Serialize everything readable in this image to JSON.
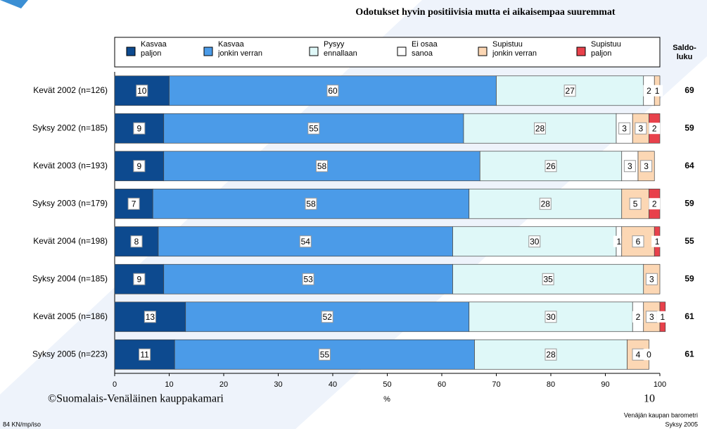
{
  "chart_data": {
    "type": "stacked-barh",
    "title": "Odotukset hyvin positiivisia mutta ei aikaisempaa suuremmat",
    "categories": [
      "Kevät 2002 (n=126)",
      "Syksy 2002 (n=185)",
      "Kevät 2003 (n=193)",
      "Syksy 2003 (n=179)",
      "Kevät 2004 (n=198)",
      "Syksy 2004 (n=185)",
      "Kevät 2005 (n=186)",
      "Syksy 2005 (n=223)"
    ],
    "series": [
      {
        "name": "Kasvaa\npaljon",
        "color": "#0d4a8f",
        "values": [
          10,
          9,
          9,
          7,
          8,
          9,
          13,
          11
        ]
      },
      {
        "name": "Kasvaa\njonkin verran",
        "color": "#4b9be8",
        "values": [
          60,
          55,
          58,
          58,
          54,
          53,
          52,
          55
        ]
      },
      {
        "name": "Pysyy\nennallaan",
        "color": "#dff8f8",
        "values": [
          27,
          28,
          26,
          28,
          30,
          35,
          30,
          28
        ]
      },
      {
        "name": "Ei osaa\nsanoa",
        "color": "#ffffff",
        "values": [
          2,
          3,
          3,
          null,
          1,
          null,
          2,
          null
        ]
      },
      {
        "name": "Supistuu\njonkin verran",
        "color": "#fcd7b4",
        "values": [
          1,
          3,
          3,
          5,
          6,
          3,
          3,
          4
        ]
      },
      {
        "name": "Supistuu\npaljon",
        "color": "#e8414b",
        "values": [
          null,
          2,
          null,
          2,
          1,
          null,
          1,
          0
        ]
      }
    ],
    "saldo_header": [
      "Saldo-",
      "luku"
    ],
    "saldo": [
      69,
      59,
      64,
      59,
      55,
      59,
      61,
      61
    ],
    "xlabel": "%",
    "xlim": [
      0,
      100
    ],
    "xticks": [
      0,
      10,
      20,
      30,
      40,
      50,
      60,
      70,
      80,
      90,
      100
    ],
    "footer": {
      "copyright": "©Suomalais-Venäläinen kauppakamari",
      "page": "10",
      "source": "Venäjän kaupan barometri",
      "period": "Syksy 2005",
      "code": "84 KN/mp/iso"
    }
  }
}
